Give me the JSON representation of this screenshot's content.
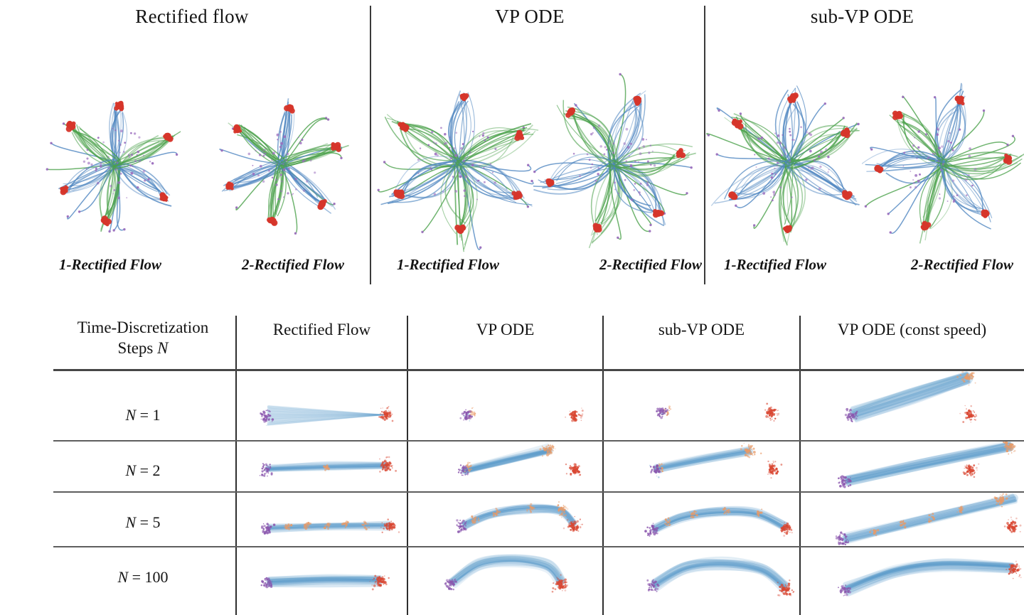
{
  "colors": {
    "blue": "#4f86c0",
    "green": "#4ba14b",
    "red": "#d6352a",
    "purple_dot": "#9a6bbd",
    "stream": "#4d92c6",
    "purple": "#8a55ad",
    "target_red": "#d94732",
    "orange": "#e99a66",
    "light_blue": "#8fb9dc",
    "rule_gray": "#5e5e5e",
    "rule_dark": "#2e2e2e",
    "text": "#141414"
  },
  "top": {
    "groups": [
      {
        "title": "Rectified flow",
        "plots": [
          {
            "label": "1-Rectified Flow",
            "flower": {
              "seed": 11,
              "r": 82,
              "spread": 0.33,
              "curl": 0.18,
              "a0": 83
            }
          },
          {
            "label": "2-Rectified Flow",
            "flower": {
              "seed": 22,
              "r": 80,
              "spread": 0.19,
              "curl": 0.12,
              "a0": 78
            }
          }
        ]
      },
      {
        "title": "VP ODE",
        "plots": [
          {
            "label": "1-Rectified Flow",
            "flower": {
              "seed": 33,
              "r": 94,
              "spread": 0.5,
              "curl": 0.45,
              "a0": 86
            }
          },
          {
            "label": "2-Rectified Flow",
            "flower": {
              "seed": 44,
              "r": 94,
              "spread": 0.5,
              "curl": 0.45,
              "a0": 74
            }
          }
        ]
      },
      {
        "title": "sub-VP ODE",
        "plots": [
          {
            "label": "1-Rectified Flow",
            "flower": {
              "seed": 55,
              "r": 92,
              "spread": 0.48,
              "curl": 0.42,
              "a0": 88
            }
          },
          {
            "label": "2-Rectified Flow",
            "flower": {
              "seed": 66,
              "r": 92,
              "spread": 0.48,
              "curl": 0.42,
              "a0": 70
            }
          }
        ]
      }
    ]
  },
  "table": {
    "header": {
      "col0_line1": "Time-Discretization",
      "col0_line2_text": "Steps",
      "col0_line2_var": "N",
      "cols": [
        "Rectified Flow",
        "VP ODE",
        "sub-VP ODE",
        "VP ODE (const speed)"
      ]
    },
    "rows": [
      {
        "var": "N",
        "eq": "= 1",
        "cells": [
          {
            "streams": [
              {
                "pts": [
                  [
                    0.18,
                    0.65
                  ],
                  [
                    0.88,
                    0.64
                  ]
                ],
                "w": 14,
                "fan": true
              }
            ],
            "clusters": [
              [
                "purple",
                0.17,
                0.65
              ],
              [
                "red",
                0.88,
                0.64
              ]
            ]
          },
          {
            "streams": [],
            "clusters": [
              [
                "purpleorange",
                0.3,
                0.64
              ],
              [
                "red",
                0.86,
                0.66
              ]
            ]
          },
          {
            "streams": [],
            "clusters": [
              [
                "purpleorange",
                0.3,
                0.62
              ],
              [
                "red",
                0.86,
                0.62
              ]
            ]
          },
          {
            "streams": [
              {
                "pts": [
                  [
                    0.24,
                    0.64
                  ],
                  [
                    0.5,
                    0.37
                  ],
                  [
                    0.75,
                    0.1
                  ]
                ],
                "w": 16
              }
            ],
            "clusters": [
              [
                "purple",
                0.23,
                0.64
              ],
              [
                "orangestar",
                0.75,
                0.09
              ],
              [
                "red",
                0.76,
                0.64
              ]
            ]
          }
        ]
      },
      {
        "var": "N",
        "eq": "= 2",
        "cells": [
          {
            "streams": [
              {
                "pts": [
                  [
                    0.18,
                    0.56
                  ],
                  [
                    0.53,
                    0.52
                  ],
                  [
                    0.88,
                    0.49
                  ]
                ],
                "w": 8
              }
            ],
            "clusters": [
              [
                "purple",
                0.17,
                0.57
              ],
              [
                "orange",
                0.53,
                0.52
              ],
              [
                "red",
                0.88,
                0.49
              ]
            ]
          },
          {
            "streams": [
              {
                "pts": [
                  [
                    0.29,
                    0.59
                  ],
                  [
                    0.51,
                    0.38
                  ],
                  [
                    0.73,
                    0.18
                  ]
                ],
                "w": 11
              }
            ],
            "clusters": [
              [
                "purpleorange",
                0.29,
                0.59
              ],
              [
                "orangestar",
                0.73,
                0.17
              ],
              [
                "red",
                0.86,
                0.58
              ]
            ]
          },
          {
            "streams": [
              {
                "pts": [
                  [
                    0.27,
                    0.57
                  ],
                  [
                    0.51,
                    0.38
                  ],
                  [
                    0.75,
                    0.21
                  ]
                ],
                "w": 10
              }
            ],
            "clusters": [
              [
                "purpleorange",
                0.27,
                0.57
              ],
              [
                "orangestar",
                0.75,
                0.2
              ],
              [
                "red",
                0.87,
                0.56
              ]
            ]
          },
          {
            "streams": [
              {
                "pts": [
                  [
                    0.21,
                    0.81
                  ],
                  [
                    0.57,
                    0.46
                  ],
                  [
                    0.94,
                    0.11
                  ]
                ],
                "w": 13
              }
            ],
            "clusters": [
              [
                "purple",
                0.2,
                0.81
              ],
              [
                "orangestar",
                0.94,
                0.11
              ],
              [
                "red",
                0.76,
                0.58
              ]
            ]
          }
        ]
      },
      {
        "var": "N",
        "eq": "= 5",
        "cells": [
          {
            "streams": [
              {
                "pts": [
                  [
                    0.19,
                    0.68
                  ],
                  [
                    0.55,
                    0.64
                  ],
                  [
                    0.9,
                    0.63
                  ]
                ],
                "w": 8
              }
            ],
            "clusters": [
              [
                "purple",
                0.18,
                0.69
              ],
              [
                "orange",
                0.3,
                0.63
              ],
              [
                "orange",
                0.41,
                0.62
              ],
              [
                "orange",
                0.53,
                0.62
              ],
              [
                "orange",
                0.64,
                0.62
              ],
              [
                "orange",
                0.76,
                0.62
              ],
              [
                "red",
                0.9,
                0.63
              ]
            ]
          },
          {
            "streams": [
              {
                "pts": [
                  [
                    0.29,
                    0.62
                  ],
                  [
                    0.42,
                    0.42
                  ],
                  [
                    0.6,
                    0.31
                  ],
                  [
                    0.78,
                    0.34
                  ],
                  [
                    0.855,
                    0.6
                  ]
                ],
                "w": 9
              }
            ],
            "clusters": [
              [
                "purple",
                0.28,
                0.63
              ],
              [
                "orange",
                0.345,
                0.52
              ],
              [
                "orange",
                0.46,
                0.38
              ],
              [
                "orange",
                0.63,
                0.29
              ],
              [
                "orangestar",
                0.79,
                0.32,
                22,
                8
              ],
              [
                "red",
                0.855,
                0.63
              ]
            ]
          },
          {
            "streams": [
              {
                "pts": [
                  [
                    0.26,
                    0.7
                  ],
                  [
                    0.4,
                    0.48
                  ],
                  [
                    0.58,
                    0.37
                  ],
                  [
                    0.78,
                    0.4
                  ],
                  [
                    0.93,
                    0.66
                  ]
                ],
                "w": 9
              }
            ],
            "clusters": [
              [
                "purple",
                0.25,
                0.71
              ],
              [
                "orange",
                0.33,
                0.56
              ],
              [
                "orange",
                0.46,
                0.42
              ],
              [
                "orange",
                0.63,
                0.35
              ],
              [
                "orange",
                0.8,
                0.38
              ],
              [
                "red",
                0.93,
                0.68
              ]
            ]
          },
          {
            "streams": [
              {
                "pts": [
                  [
                    0.2,
                    0.87
                  ],
                  [
                    0.58,
                    0.48
                  ],
                  [
                    0.96,
                    0.1
                  ]
                ],
                "w": 11
              }
            ],
            "clusters": [
              [
                "purple",
                0.19,
                0.88
              ],
              [
                "orange",
                0.33,
                0.74
              ],
              [
                "orange",
                0.46,
                0.6
              ],
              [
                "orange",
                0.59,
                0.47
              ],
              [
                "orange",
                0.72,
                0.33
              ],
              [
                "orangestar",
                0.9,
                0.15
              ],
              [
                "red",
                0.95,
                0.64
              ]
            ]
          }
        ]
      },
      {
        "var": "N",
        "eq": "= 100",
        "cells": [
          {
            "streams": [
              {
                "pts": [
                  [
                    0.19,
                    0.53
                  ],
                  [
                    0.53,
                    0.5
                  ],
                  [
                    0.84,
                    0.5
                  ]
                ],
                "w": 11
              }
            ],
            "clusters": [
              [
                "purple",
                0.18,
                0.54
              ],
              [
                "red",
                0.84,
                0.5
              ]
            ]
          },
          {
            "streams": [
              {
                "pts": [
                  [
                    0.23,
                    0.52
                  ],
                  [
                    0.37,
                    0.25
                  ],
                  [
                    0.55,
                    0.19
                  ],
                  [
                    0.72,
                    0.28
                  ],
                  [
                    0.79,
                    0.52
                  ]
                ],
                "w": 11
              }
            ],
            "clusters": [
              [
                "purple",
                0.22,
                0.53
              ],
              [
                "red",
                0.79,
                0.55
              ]
            ]
          },
          {
            "streams": [
              {
                "pts": [
                  [
                    0.26,
                    0.56
                  ],
                  [
                    0.42,
                    0.3
                  ],
                  [
                    0.61,
                    0.24
                  ],
                  [
                    0.81,
                    0.33
                  ],
                  [
                    0.93,
                    0.59
                  ]
                ],
                "w": 11
              }
            ],
            "clusters": [
              [
                "purple",
                0.25,
                0.57
              ],
              [
                "red",
                0.93,
                0.62
              ]
            ]
          },
          {
            "streams": [
              {
                "pts": [
                  [
                    0.21,
                    0.63
                  ],
                  [
                    0.42,
                    0.37
                  ],
                  [
                    0.64,
                    0.27
                  ],
                  [
                    0.95,
                    0.31
                  ]
                ],
                "w": 12
              }
            ],
            "clusters": [
              [
                "purple",
                0.2,
                0.64
              ],
              [
                "red",
                0.955,
                0.32
              ]
            ]
          }
        ]
      }
    ]
  }
}
